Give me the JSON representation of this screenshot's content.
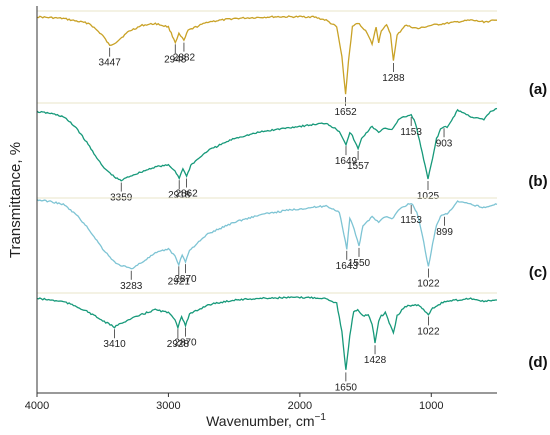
{
  "chart_data": {
    "type": "line",
    "xlabel_main": "Wavenumber, cm",
    "xlabel_sup": "−1",
    "ylabel": "Transmittance, %",
    "xlim": [
      4000,
      500
    ],
    "x_ticks": [
      4000,
      3000,
      2000,
      1000
    ],
    "x_tick_labels": [
      "4000",
      "3000",
      "2000",
      "1000"
    ],
    "series": [
      {
        "name": "(a)",
        "color": "#c9a227",
        "points": [
          [
            4000,
            92
          ],
          [
            3800,
            90
          ],
          [
            3600,
            84
          ],
          [
            3500,
            70
          ],
          [
            3447,
            58
          ],
          [
            3400,
            62
          ],
          [
            3300,
            75
          ],
          [
            3200,
            82
          ],
          [
            3100,
            84
          ],
          [
            3000,
            80
          ],
          [
            2948,
            62
          ],
          [
            2920,
            72
          ],
          [
            2882,
            64
          ],
          [
            2850,
            76
          ],
          [
            2700,
            86
          ],
          [
            2500,
            90
          ],
          [
            2200,
            92
          ],
          [
            1900,
            92
          ],
          [
            1800,
            88
          ],
          [
            1720,
            80
          ],
          [
            1680,
            45
          ],
          [
            1652,
            0
          ],
          [
            1630,
            40
          ],
          [
            1600,
            80
          ],
          [
            1560,
            85
          ],
          [
            1500,
            76
          ],
          [
            1450,
            60
          ],
          [
            1420,
            80
          ],
          [
            1400,
            62
          ],
          [
            1380,
            76
          ],
          [
            1340,
            82
          ],
          [
            1310,
            72
          ],
          [
            1288,
            40
          ],
          [
            1260,
            70
          ],
          [
            1200,
            82
          ],
          [
            1100,
            78
          ],
          [
            1050,
            80
          ],
          [
            1000,
            82
          ],
          [
            900,
            84
          ],
          [
            800,
            86
          ],
          [
            700,
            88
          ],
          [
            600,
            86
          ],
          [
            500,
            88
          ]
        ],
        "peaks": [
          {
            "x": 3447,
            "label": "3447"
          },
          {
            "x": 2948,
            "label": "2948"
          },
          {
            "x": 2882,
            "label": "2882"
          },
          {
            "x": 1652,
            "label": "1652"
          },
          {
            "x": 1288,
            "label": "1288"
          }
        ]
      },
      {
        "name": "(b)",
        "color": "#17997a",
        "points": [
          [
            4000,
            88
          ],
          [
            3900,
            86
          ],
          [
            3800,
            82
          ],
          [
            3700,
            68
          ],
          [
            3600,
            45
          ],
          [
            3500,
            20
          ],
          [
            3400,
            6
          ],
          [
            3359,
            3
          ],
          [
            3300,
            8
          ],
          [
            3200,
            14
          ],
          [
            3100,
            20
          ],
          [
            3000,
            22
          ],
          [
            2950,
            15
          ],
          [
            2918,
            6
          ],
          [
            2890,
            18
          ],
          [
            2862,
            8
          ],
          [
            2830,
            22
          ],
          [
            2700,
            40
          ],
          [
            2500,
            55
          ],
          [
            2300,
            63
          ],
          [
            2100,
            68
          ],
          [
            1900,
            72
          ],
          [
            1800,
            74
          ],
          [
            1700,
            64
          ],
          [
            1649,
            48
          ],
          [
            1620,
            62
          ],
          [
            1600,
            58
          ],
          [
            1557,
            42
          ],
          [
            1530,
            55
          ],
          [
            1450,
            70
          ],
          [
            1400,
            62
          ],
          [
            1350,
            68
          ],
          [
            1300,
            66
          ],
          [
            1250,
            78
          ],
          [
            1200,
            82
          ],
          [
            1153,
            84
          ],
          [
            1120,
            74
          ],
          [
            1080,
            45
          ],
          [
            1025,
            5
          ],
          [
            990,
            30
          ],
          [
            960,
            55
          ],
          [
            930,
            66
          ],
          [
            903,
            70
          ],
          [
            880,
            68
          ],
          [
            800,
            90
          ],
          [
            700,
            82
          ],
          [
            600,
            78
          ],
          [
            550,
            88
          ],
          [
            500,
            92
          ]
        ],
        "peaks": [
          {
            "x": 3359,
            "label": "3359"
          },
          {
            "x": 2918,
            "label": "2918"
          },
          {
            "x": 2862,
            "label": "2862"
          },
          {
            "x": 1649,
            "label": "1649"
          },
          {
            "x": 1557,
            "label": "1557"
          },
          {
            "x": 1153,
            "label": "1153"
          },
          {
            "x": 1025,
            "label": "1025"
          },
          {
            "x": 903,
            "label": "903"
          }
        ]
      },
      {
        "name": "(c)",
        "color": "#7ec4d4",
        "points": [
          [
            4000,
            96
          ],
          [
            3900,
            94
          ],
          [
            3800,
            90
          ],
          [
            3700,
            76
          ],
          [
            3600,
            55
          ],
          [
            3500,
            30
          ],
          [
            3400,
            10
          ],
          [
            3283,
            3
          ],
          [
            3200,
            12
          ],
          [
            3100,
            24
          ],
          [
            3000,
            30
          ],
          [
            2950,
            20
          ],
          [
            2921,
            9
          ],
          [
            2895,
            22
          ],
          [
            2870,
            12
          ],
          [
            2840,
            28
          ],
          [
            2700,
            50
          ],
          [
            2500,
            66
          ],
          [
            2300,
            76
          ],
          [
            2100,
            82
          ],
          [
            1900,
            86
          ],
          [
            1800,
            88
          ],
          [
            1700,
            80
          ],
          [
            1643,
            30
          ],
          [
            1620,
            70
          ],
          [
            1600,
            64
          ],
          [
            1550,
            34
          ],
          [
            1520,
            60
          ],
          [
            1450,
            74
          ],
          [
            1400,
            66
          ],
          [
            1350,
            74
          ],
          [
            1300,
            70
          ],
          [
            1250,
            82
          ],
          [
            1200,
            88
          ],
          [
            1153,
            92
          ],
          [
            1110,
            80
          ],
          [
            1070,
            50
          ],
          [
            1022,
            6
          ],
          [
            990,
            36
          ],
          [
            960,
            62
          ],
          [
            930,
            74
          ],
          [
            899,
            76
          ],
          [
            870,
            78
          ],
          [
            800,
            94
          ],
          [
            700,
            90
          ],
          [
            600,
            86
          ],
          [
            500,
            90
          ]
        ],
        "peaks": [
          {
            "x": 3283,
            "label": "3283"
          },
          {
            "x": 2921,
            "label": "2921"
          },
          {
            "x": 2870,
            "label": "2870"
          },
          {
            "x": 1643,
            "label": "1643"
          },
          {
            "x": 1550,
            "label": "1550"
          },
          {
            "x": 1153,
            "label": "1153"
          },
          {
            "x": 1022,
            "label": "1022"
          },
          {
            "x": 899,
            "label": "899"
          }
        ]
      },
      {
        "name": "(d)",
        "color": "#17997a",
        "points": [
          [
            4000,
            92
          ],
          [
            3900,
            90
          ],
          [
            3800,
            88
          ],
          [
            3700,
            82
          ],
          [
            3600,
            74
          ],
          [
            3500,
            64
          ],
          [
            3410,
            56
          ],
          [
            3350,
            62
          ],
          [
            3200,
            72
          ],
          [
            3100,
            78
          ],
          [
            3000,
            74
          ],
          [
            2950,
            66
          ],
          [
            2928,
            56
          ],
          [
            2900,
            70
          ],
          [
            2870,
            58
          ],
          [
            2840,
            72
          ],
          [
            2700,
            84
          ],
          [
            2500,
            90
          ],
          [
            2300,
            92
          ],
          [
            2100,
            93
          ],
          [
            1900,
            93
          ],
          [
            1800,
            92
          ],
          [
            1720,
            86
          ],
          [
            1680,
            50
          ],
          [
            1650,
            2
          ],
          [
            1620,
            45
          ],
          [
            1590,
            76
          ],
          [
            1560,
            78
          ],
          [
            1520,
            70
          ],
          [
            1480,
            72
          ],
          [
            1450,
            60
          ],
          [
            1428,
            36
          ],
          [
            1400,
            64
          ],
          [
            1380,
            70
          ],
          [
            1350,
            74
          ],
          [
            1310,
            58
          ],
          [
            1288,
            48
          ],
          [
            1260,
            70
          ],
          [
            1200,
            82
          ],
          [
            1100,
            84
          ],
          [
            1060,
            78
          ],
          [
            1022,
            72
          ],
          [
            990,
            80
          ],
          [
            900,
            88
          ],
          [
            800,
            90
          ],
          [
            700,
            92
          ],
          [
            600,
            88
          ],
          [
            500,
            90
          ]
        ],
        "peaks": [
          {
            "x": 3410,
            "label": "3410"
          },
          {
            "x": 2928,
            "label": "2928"
          },
          {
            "x": 2870,
            "label": "2870"
          },
          {
            "x": 1650,
            "label": "1650"
          },
          {
            "x": 1428,
            "label": "1428"
          },
          {
            "x": 1022,
            "label": "1022"
          }
        ]
      }
    ]
  }
}
